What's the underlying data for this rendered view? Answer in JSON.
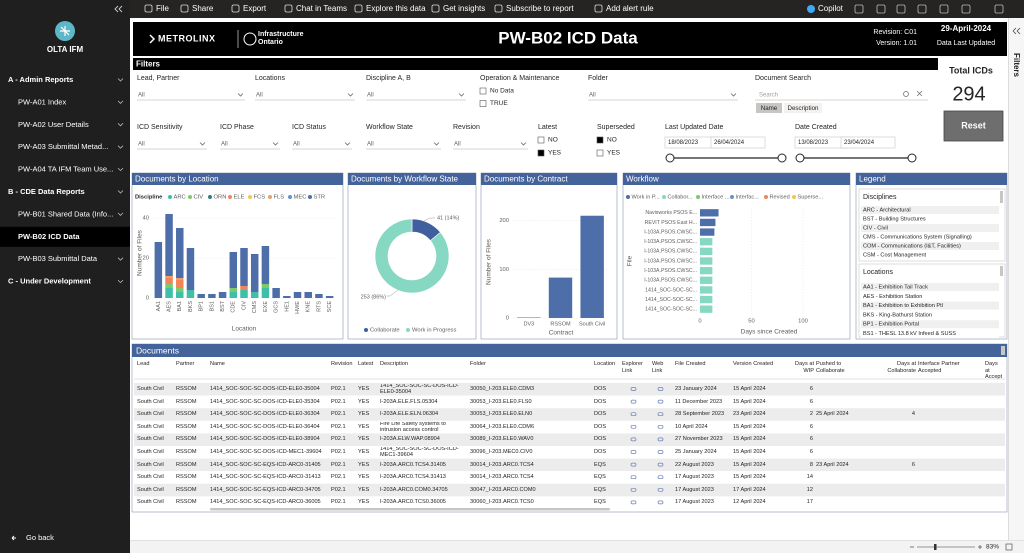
{
  "toolbar": {
    "items": [
      "File",
      "Share",
      "Export",
      "Chat in Teams",
      "Explore this data",
      "Get insights",
      "Subscribe to report",
      "Add alert rule"
    ],
    "copilot": "Copilot"
  },
  "sidebar": {
    "app": "OLTA IFM",
    "groups": [
      {
        "title": "A - Admin Reports",
        "items": [
          {
            "label": "PW-A01 Index"
          },
          {
            "label": "PW-A02 User Details"
          },
          {
            "label": "PW-A03 Submittal Metad..."
          },
          {
            "label": "PW-A04 TA IFM Team Use..."
          }
        ]
      },
      {
        "title": "B - CDE Data Reports",
        "items": [
          {
            "label": "PW-B01 Shared Data (Info..."
          },
          {
            "label": "PW-B02 ICD Data",
            "active": true
          },
          {
            "label": "PW-B03 Submittal Data"
          }
        ]
      },
      {
        "title": "C - Under Development",
        "items": []
      }
    ],
    "back": "Go back"
  },
  "header": {
    "brand1": "METROLINX",
    "brand2": "Infrastructure Ontario",
    "title": "PW-B02 ICD Data",
    "revision": "Revision: C01",
    "version": "Version: 1.01",
    "date": "29-April-2024",
    "date_note": "Data Last Updated"
  },
  "filters": {
    "title": "Filters",
    "slicers": [
      {
        "label": "Lead, Partner",
        "value": "All"
      },
      {
        "label": "Locations",
        "value": "All"
      },
      {
        "label": "Discipline A, B",
        "value": "All"
      },
      {
        "label": "Folder",
        "value": "All"
      },
      {
        "label": "ICD Sensitivity",
        "value": "All"
      },
      {
        "label": "ICD Phase",
        "value": "All"
      },
      {
        "label": "ICD Status",
        "value": "All"
      },
      {
        "label": "Workflow State",
        "value": "All"
      },
      {
        "label": "Revision",
        "value": "All"
      }
    ],
    "om": {
      "label": "Operation & Maintenance",
      "options": [
        {
          "text": "No Data",
          "checked": false
        },
        {
          "text": "TRUE",
          "checked": false
        }
      ]
    },
    "latest": {
      "label": "Latest",
      "options": [
        {
          "text": "NO",
          "checked": false
        },
        {
          "text": "YES",
          "checked": true
        }
      ]
    },
    "superseded": {
      "label": "Superseded",
      "options": [
        {
          "text": "NO",
          "checked": true
        },
        {
          "text": "YES",
          "checked": false
        }
      ]
    },
    "search": {
      "label": "Document Search",
      "placeholder": "Search",
      "modes": [
        "Name",
        "Description"
      ]
    },
    "dates": [
      {
        "label": "Last Updated Date",
        "from": "18/08/2023",
        "to": "26/04/2024"
      },
      {
        "label": "Date Created",
        "from": "13/08/2023",
        "to": "23/04/2024"
      }
    ]
  },
  "kpi": {
    "label": "Total ICDs",
    "value": 294,
    "reset": "Reset"
  },
  "charts": [
    {
      "type": "stacked-bar",
      "title": "Documents by Location",
      "legend_title": "Discipline",
      "x_label": "Location",
      "y_label": "Number of Files",
      "categories": [
        "AA1",
        "AES",
        "BA1",
        "BKS",
        "BP1",
        "BS1",
        "BST",
        "CDE",
        "CIV",
        "CMS",
        "EXE",
        "GCS",
        "HE1",
        "HWE",
        "KNE",
        "RTS",
        "SCE"
      ],
      "ylim": [
        0,
        45
      ],
      "yticks": [
        0,
        20,
        40
      ],
      "series": [
        {
          "name": "ARC",
          "color": "#3fbfa8",
          "values": [
            0,
            5,
            3,
            4,
            0,
            0,
            0,
            3,
            4,
            3,
            5,
            0,
            0,
            0,
            0,
            0,
            0
          ]
        },
        {
          "name": "CIV",
          "color": "#7cc96b",
          "values": [
            0,
            2,
            2,
            0,
            0,
            0,
            0,
            2,
            0,
            0,
            2,
            0,
            0,
            0,
            0,
            0,
            0
          ]
        },
        {
          "name": "ORN",
          "color": "#2f7f86",
          "values": [
            0,
            0,
            0,
            0,
            0,
            0,
            0,
            0,
            0,
            0,
            0,
            0,
            0,
            0,
            0,
            0,
            0
          ]
        },
        {
          "name": "ELE",
          "color": "#f2845c",
          "values": [
            0,
            3,
            4,
            0,
            0,
            0,
            0,
            0,
            2,
            0,
            0,
            0,
            0,
            0,
            0,
            0,
            0
          ]
        },
        {
          "name": "FCS",
          "color": "#f3c64b",
          "values": [
            0,
            0,
            0,
            0,
            0,
            0,
            0,
            0,
            0,
            0,
            0,
            0,
            0,
            0,
            0,
            0,
            0
          ]
        },
        {
          "name": "FLS",
          "color": "#e8a06a",
          "values": [
            0,
            1,
            1,
            0,
            0,
            0,
            0,
            0,
            0,
            0,
            0,
            0,
            0,
            0,
            0,
            0,
            0
          ]
        },
        {
          "name": "MEC",
          "color": "#6b8fd1",
          "values": [
            0,
            0,
            0,
            0,
            0,
            0,
            0,
            0,
            0,
            0,
            0,
            0,
            0,
            0,
            0,
            0,
            0
          ]
        },
        {
          "name": "STR",
          "color": "#4e6ea9",
          "values": [
            28,
            31,
            25,
            21,
            2,
            2,
            3,
            18,
            19,
            19,
            19,
            5,
            1,
            3,
            3,
            2,
            1
          ]
        }
      ]
    },
    {
      "type": "donut",
      "title": "Documents by Workflow State",
      "categories": [
        "Collaborate",
        "Work in Progress"
      ],
      "values": [
        41,
        253
      ],
      "value_labels": [
        "41 (14%)",
        "253 (86%)"
      ],
      "colors": [
        "#3f5f9f",
        "#86d8c2"
      ]
    },
    {
      "type": "bar",
      "title": "Documents by Contract",
      "x_label": "Contract",
      "y_label": "Number of Files",
      "categories": [
        "DV3",
        "RSSOM",
        "South Civil"
      ],
      "values": [
        1,
        83,
        210
      ],
      "color": "#4e6ea9",
      "ylim": [
        0,
        230
      ],
      "yticks": [
        0,
        100,
        200
      ]
    },
    {
      "type": "hbar",
      "title": "Workflow",
      "x_label": "Days since Created",
      "y_label": "File",
      "categories": [
        "Navisworks PSOS E...",
        "REVIT PSOS East H...",
        "I-103A.PSOS.CWSC...",
        "I-103A.PSOS.CWSC...",
        "I-103A.PSOS.CWSC...",
        "I-103A.PSOS.CWSC...",
        "I-103A.PSOS.CWSC...",
        "I-103A.PSOS.CWSC...",
        "1414_SOC-SOC-SC...",
        "1414_SOC-SOC-SC...",
        "1414_SOC-SOC-SC..."
      ],
      "xlim": [
        0,
        135
      ],
      "xticks": [
        0,
        50,
        100
      ],
      "series": [
        {
          "name": "Work in P...",
          "color": "#4e6ea9",
          "values": [
            18,
            15,
            14,
            0,
            0,
            0,
            0,
            0,
            0,
            0,
            0
          ]
        },
        {
          "name": "Collabor...",
          "color": "#86d8c2",
          "values": [
            0,
            0,
            0,
            12,
            12,
            12,
            12,
            12,
            12,
            12,
            12
          ]
        },
        {
          "name": "Interface ...",
          "color": "#7cc96b",
          "values": [
            0,
            0,
            0,
            0,
            0,
            0,
            0,
            0,
            0,
            0,
            0
          ]
        },
        {
          "name": "Interfac...",
          "color": "#6b8fd1",
          "values": [
            0,
            0,
            0,
            0,
            0,
            0,
            0,
            0,
            0,
            0,
            0
          ]
        },
        {
          "name": "Revised",
          "color": "#f2845c",
          "values": [
            0,
            0,
            0,
            0,
            0,
            0,
            0,
            0,
            0,
            0,
            0
          ]
        },
        {
          "name": "Superse...",
          "color": "#f3c64b",
          "values": [
            0,
            0,
            0,
            0,
            0,
            0,
            0,
            0,
            0,
            0,
            0
          ]
        }
      ]
    }
  ],
  "legend_panel": {
    "title": "Legend",
    "disciplines_title": "Disciplines",
    "disciplines": [
      "ARC - Architectural",
      "BST - Building Structures",
      "CIV - Civil",
      "CMS - Communications System (Signalling)",
      "COM - Communications (I&T, Facilities)",
      "CSM - Cost Management"
    ],
    "locations_title": "Locations",
    "locations": [
      "AA1 - Exhibition Tail Track",
      "AES - Exhibition Station",
      "BA1 - Exhibition to Exhibition Ptl",
      "BKS - King-Bathurst Station",
      "BP1 - Exhibition Portal",
      "BS1 - THESL 13.8 kV Infeed & SUSS"
    ]
  },
  "table": {
    "title": "Documents",
    "columns": [
      "Lead",
      "Partner",
      "Name",
      "Revision",
      "Latest",
      "Description",
      "Folder",
      "Location",
      "Explorer Link",
      "Web Link",
      "File Created",
      "Version Created",
      "Days at WIP",
      "Pushed to Collaborate",
      "Days at Collaborate",
      "Interface Partner Accepted",
      "Days at Accept"
    ],
    "rows": [
      [
        "South Civil",
        "RSSOM",
        "1414_SOC-SOC-SC-DOS-ICD-ELE0-35004",
        "P02.1",
        "YES",
        "1414_SOC-SOC-SC-DOS-ICD-ELE0-35004",
        "30050_I-203.ELE0.CDM3",
        "DOS",
        null,
        null,
        "23 January 2024",
        "15 April 2024",
        6
      ],
      [
        "South Civil",
        "RSSOM",
        "1414_SOC-SOC-SC-DOS-ICD-ELE0-35304",
        "P02.1",
        "YES",
        "I-203A.ELE.FLS.05304",
        "30053_I-203.ELE0.FLS0",
        "DOS",
        null,
        null,
        "11 December 2023",
        "15 April 2024",
        6
      ],
      [
        "South Civil",
        "RSSOM",
        "1414_SOC-SOC-SC-DOS-ICD-ELE0-36304",
        "P02.1",
        "YES",
        "I-203A.ELE.ELN.06304",
        "30053_I-203.ELE0.ELN0",
        "DOS",
        null,
        null,
        "28 September 2023",
        "23 April 2024",
        2,
        "25 April 2024",
        4
      ],
      [
        "South Civil",
        "RSSOM",
        "1414_SOC-SOC-SC-DOS-ICD-ELE0-36404",
        "P02.1",
        "YES",
        "Fire Life Safety systems to intrusion access control",
        "30064_I-203.ELE0.CDM6",
        "DOS",
        null,
        null,
        "10 April 2024",
        "15 April 2024",
        6
      ],
      [
        "South Civil",
        "RSSOM",
        "1414_SOC-SOC-SC-DOS-ICD-ELE0-38904",
        "P02.1",
        "YES",
        "I-203A.ELW.WAP.08904",
        "30089_I-203.ELE0.WAV0",
        "DOS",
        null,
        null,
        "27 November 2023",
        "15 April 2024",
        6
      ],
      [
        "South Civil",
        "RSSOM",
        "1414_SOC-SOC-SC-DOS-ICD-MEC1-39604",
        "P02.1",
        "YES",
        "1414_SOC-SOC-SC-DOS-ICD-MEC1-39604",
        "30096_I-203.MEC0.CIV0",
        "DOS",
        null,
        null,
        "25 January 2024",
        "15 April 2024",
        6
      ],
      [
        "South Civil",
        "RSSOM",
        "1414_SOC-SOC-SC-EQS-ICD-ARC0-31405",
        "P02.1",
        "YES",
        "I-203A.ARC0.TCS4.31405",
        "30014_I-203.ARC0.TCS4",
        "EQS",
        null,
        null,
        "22 August 2023",
        "15 April 2024",
        8,
        "23 April 2024",
        6
      ],
      [
        "South Civil",
        "RSSOM",
        "1414_SOC-SOC-SC-EQS-ICD-ARC0-31413",
        "P02.1",
        "YES",
        "I-203A.ARC0.TCS4.31413",
        "30014_I-203.ARC0.TCS4",
        "EQS",
        null,
        null,
        "17 August 2023",
        "15 April 2024",
        14
      ],
      [
        "South Civil",
        "RSSOM",
        "1414_SOC-SOC-SC-EQS-ICD-ARC0-34705",
        "P02.1",
        "YES",
        "I-203A.ARC0.COM0.34705",
        "30047_I-203.ARC0.COM0",
        "EQS",
        null,
        null,
        "17 August 2023",
        "17 April 2024",
        12
      ],
      [
        "South Civil",
        "RSSOM",
        "1414_SOC-SOC-SC-EQS-ICD-ARC0-36005",
        "P02.1",
        "YES",
        "I-203A.ARC0.TCS0.36005",
        "30060_I-203.ARC0.TCS0",
        "EQS",
        null,
        null,
        "17 August 2023",
        "12 April 2024",
        17
      ]
    ]
  },
  "filters_pane": "Filters",
  "status": {
    "zoom": "83%"
  }
}
